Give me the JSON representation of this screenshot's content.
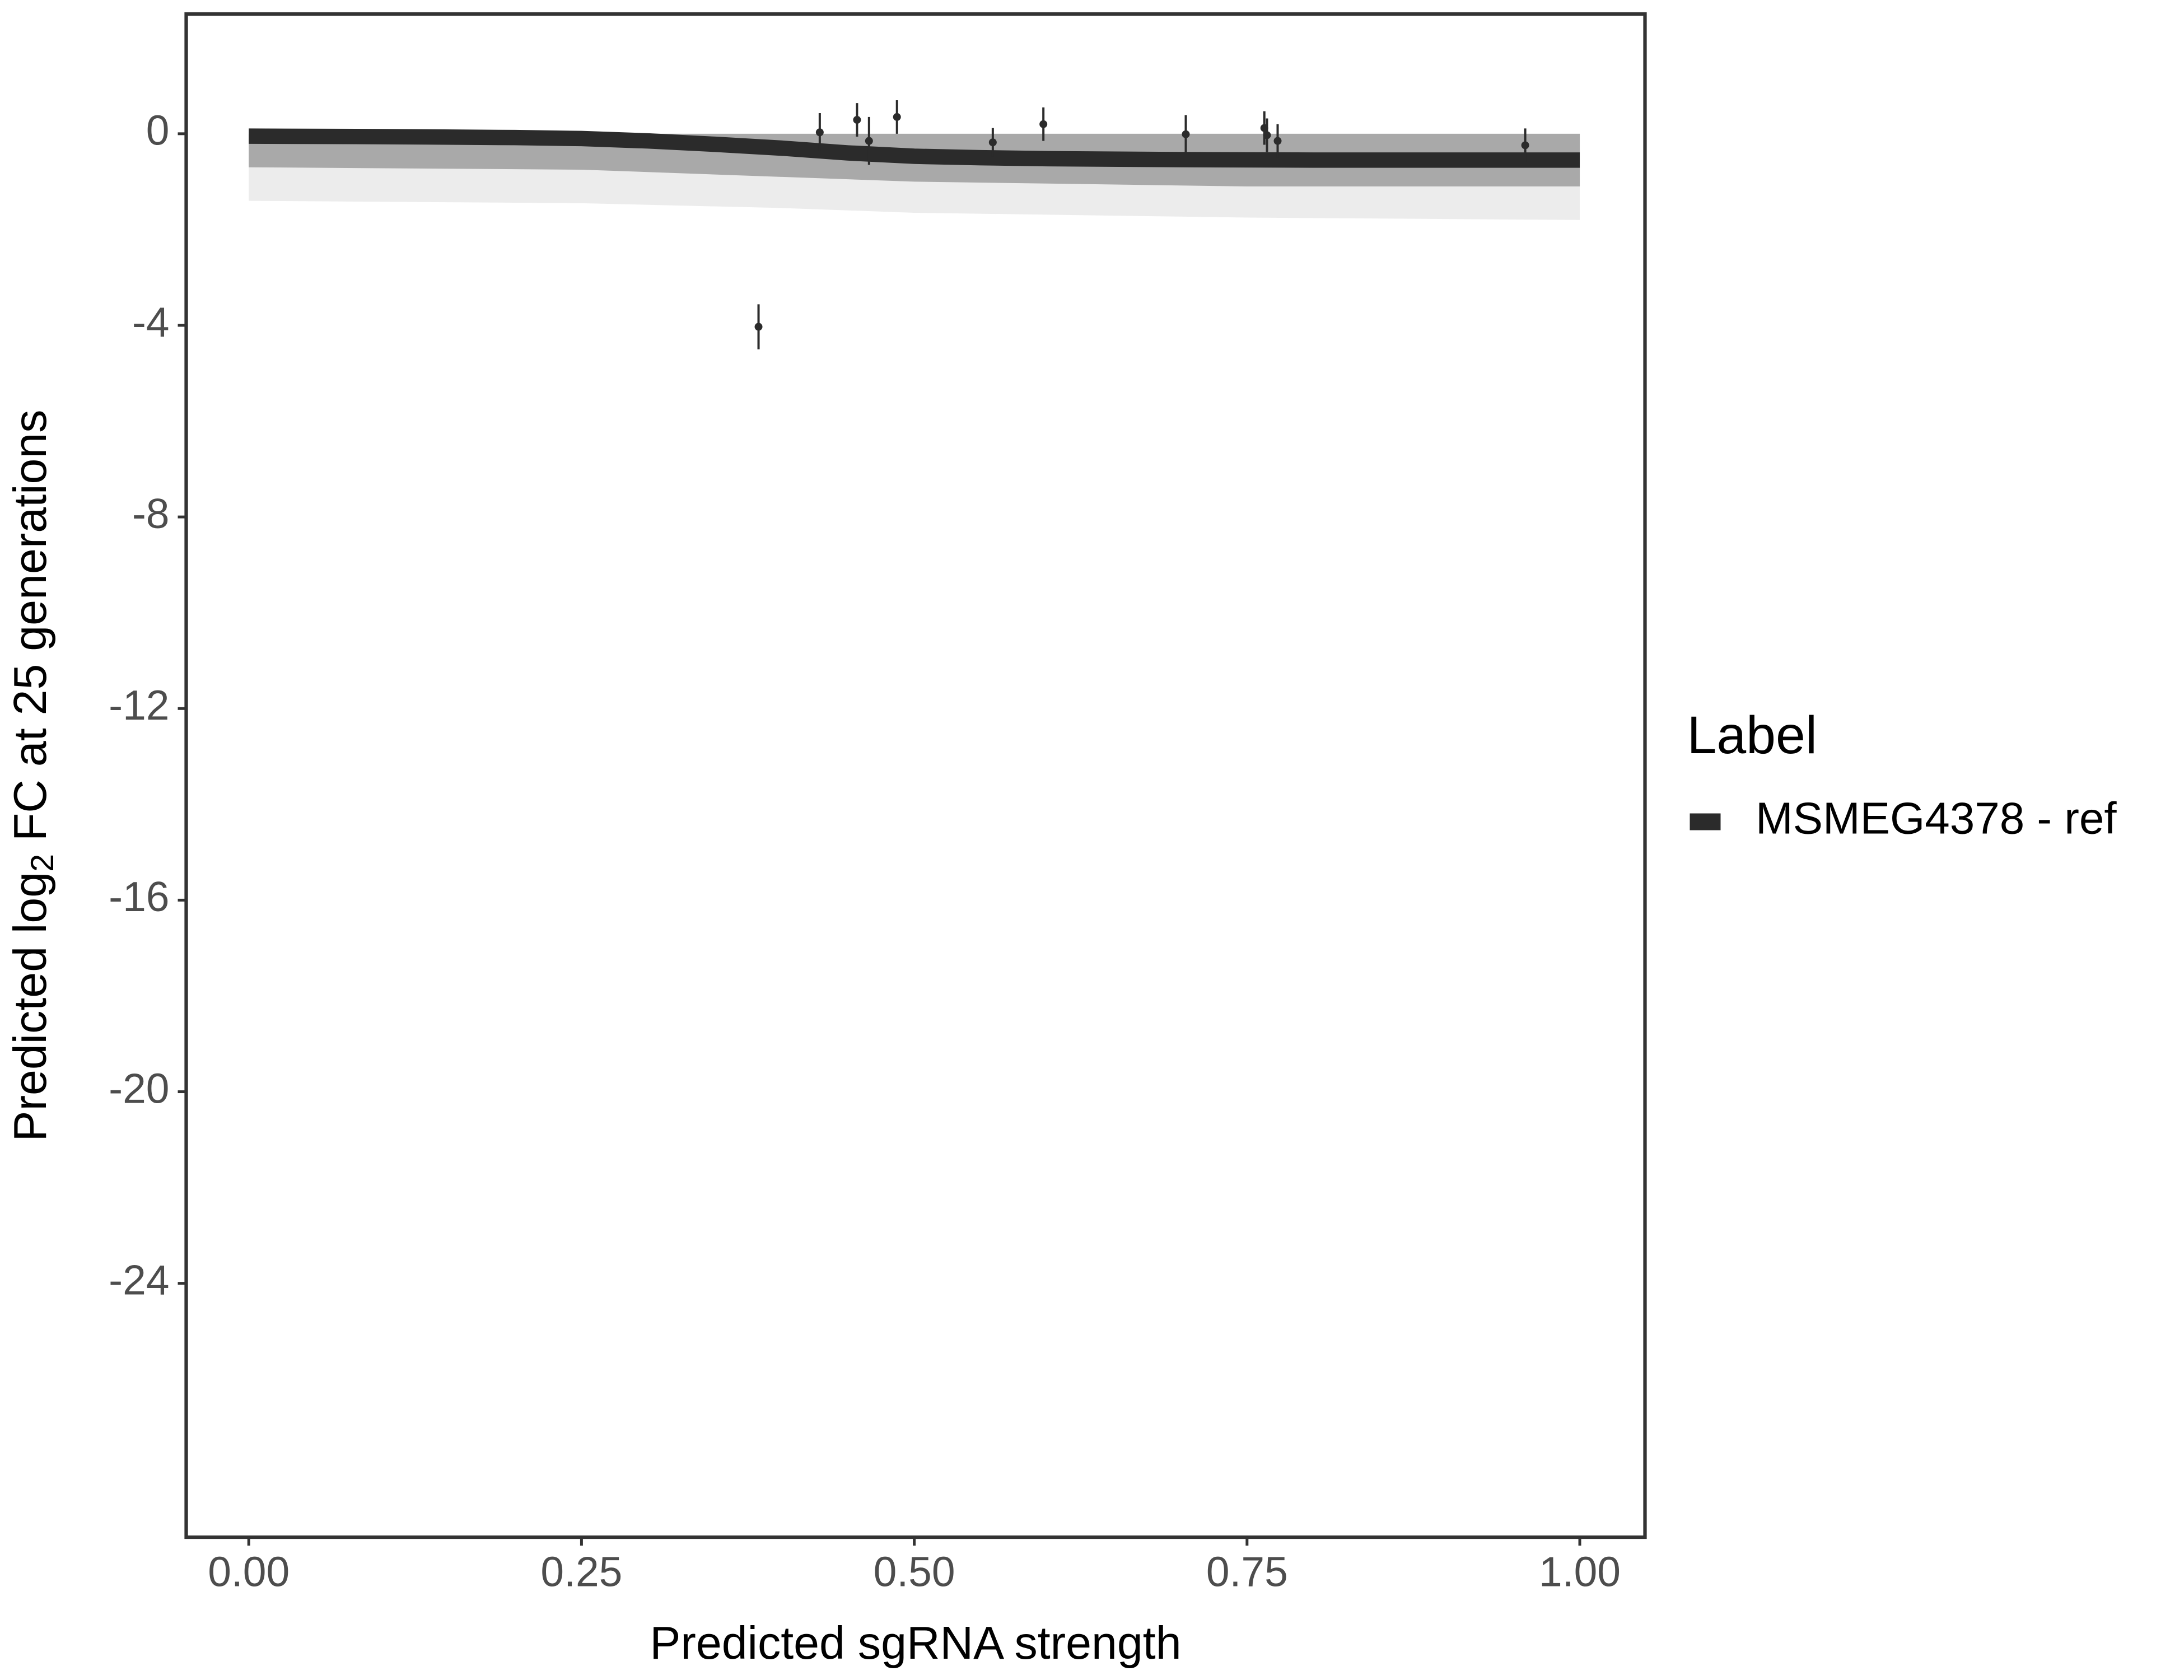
{
  "chart_data": {
    "type": "scatter",
    "xlabel": "Predicted sgRNA strength",
    "ylabel": {
      "prefix": "Predicted  log",
      "subscript": "2",
      "suffix": " FC at 25 generations"
    },
    "xlim": [
      -0.047,
      1.049
    ],
    "ylim": [
      -29.3,
      2.5
    ],
    "xticks": [
      {
        "value": 0,
        "label": "0.00"
      },
      {
        "value": 0.25,
        "label": "0.25"
      },
      {
        "value": 0.5,
        "label": "0.50"
      },
      {
        "value": 0.75,
        "label": "0.75"
      },
      {
        "value": 1,
        "label": "1.00"
      }
    ],
    "yticks": [
      0,
      -4,
      -8,
      -12,
      -16,
      -20,
      -24
    ],
    "legend_title": "Label",
    "legend_position": "right",
    "bands": [
      {
        "color": "#ececec",
        "x": [
          0,
          0.25,
          0.4,
          0.5,
          0.75,
          1.0
        ],
        "upper": [
          0,
          0,
          0,
          0,
          0,
          0
        ],
        "lower": [
          -1.4,
          -1.45,
          -1.55,
          -1.65,
          -1.75,
          -1.8
        ]
      },
      {
        "color": "#a9a9a9",
        "x": [
          0,
          0.25,
          0.4,
          0.5,
          0.75,
          1.0
        ],
        "upper": [
          0,
          0,
          0,
          0,
          0,
          0
        ],
        "lower": [
          -0.7,
          -0.75,
          -0.9,
          -1.0,
          -1.1,
          -1.1
        ]
      }
    ],
    "fit": {
      "color": "#2b2b2b",
      "x": [
        0,
        0.1,
        0.2,
        0.25,
        0.3,
        0.35,
        0.4,
        0.45,
        0.5,
        0.55,
        0.6,
        0.7,
        0.8,
        0.9,
        1.0
      ],
      "values": [
        -0.05,
        -0.06,
        -0.08,
        -0.1,
        -0.15,
        -0.22,
        -0.3,
        -0.4,
        -0.47,
        -0.5,
        -0.52,
        -0.54,
        -0.55,
        -0.55,
        -0.55
      ]
    },
    "series": [
      {
        "name": "MSMEG4378 - ref",
        "color": "#2b2b2b",
        "x": [
          0.383,
          0.429,
          0.457,
          0.466,
          0.487,
          0.559,
          0.597,
          0.704,
          0.763,
          0.765,
          0.773,
          0.959
        ],
        "values": [
          -4.03,
          0.03,
          0.29,
          -0.15,
          0.35,
          -0.18,
          0.2,
          -0.01,
          0.12,
          -0.03,
          -0.15,
          -0.24
        ],
        "errors": [
          0.47,
          0.4,
          0.35,
          0.5,
          0.35,
          0.3,
          0.35,
          0.4,
          0.35,
          0.35,
          0.35,
          0.35
        ]
      }
    ]
  }
}
